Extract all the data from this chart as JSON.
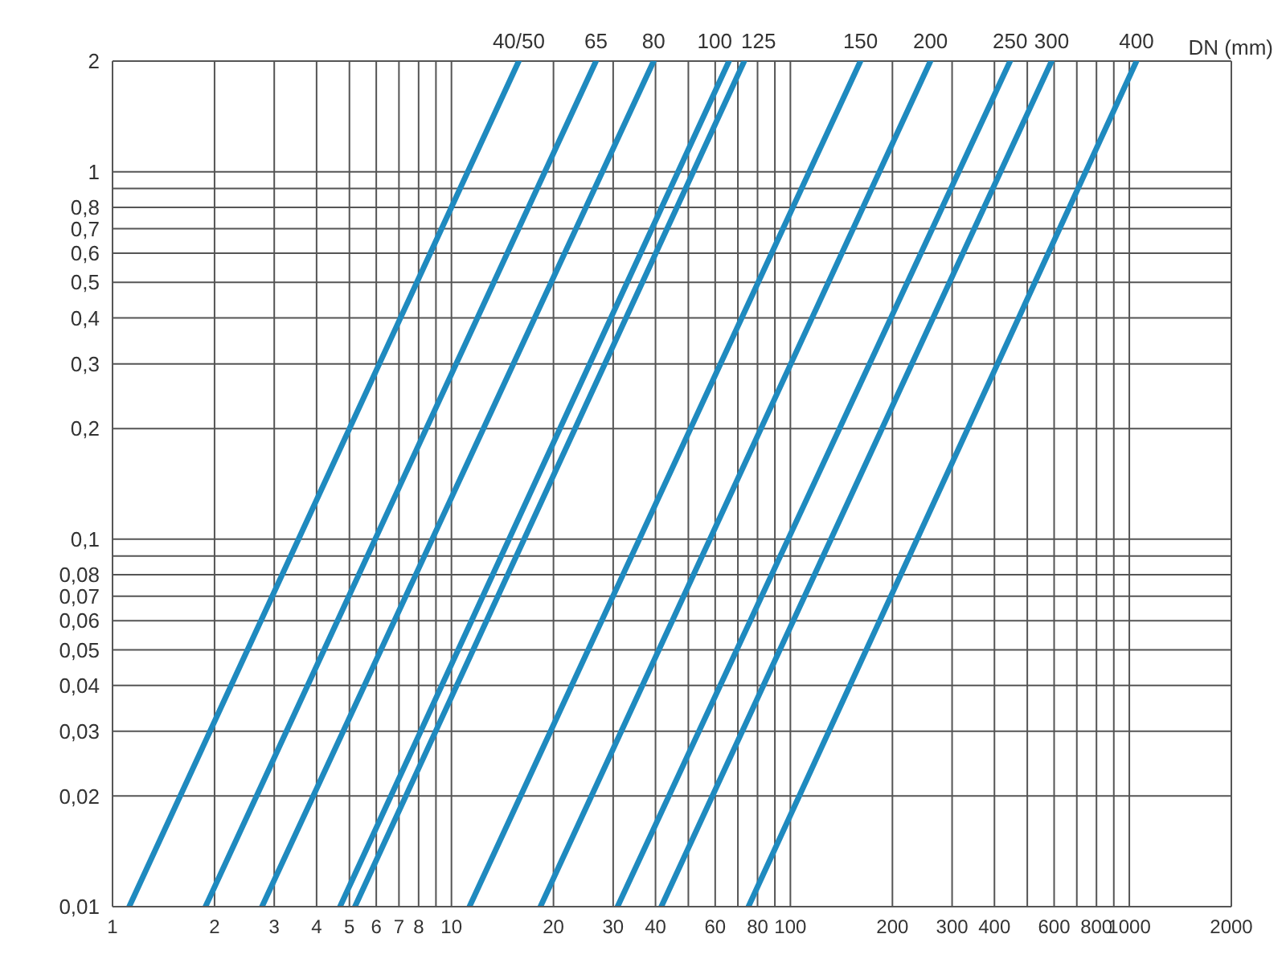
{
  "chart_data": {
    "type": "line",
    "xlim": [
      1,
      2000
    ],
    "ylim": [
      0.01,
      2
    ],
    "log": "xy",
    "grid": true,
    "line_style": "solid",
    "xticks": [
      1,
      2,
      3,
      4,
      5,
      6,
      7,
      8,
      {
        "value": 9,
        "label": null
      },
      10,
      20,
      30,
      40,
      {
        "value": 50,
        "label": null
      },
      60,
      {
        "value": 70,
        "label": null
      },
      80,
      {
        "value": 90,
        "label": null
      },
      100,
      200,
      300,
      400,
      {
        "value": 500,
        "label": null
      },
      600,
      {
        "value": 700,
        "label": null
      },
      800,
      {
        "value": 900,
        "label": null
      },
      1000,
      2000
    ],
    "yticks": [
      {
        "value": 0.01,
        "label": "0,01"
      },
      {
        "value": 0.02,
        "label": "0,02"
      },
      {
        "value": 0.03,
        "label": "0,03"
      },
      {
        "value": 0.04,
        "label": "0,04"
      },
      {
        "value": 0.05,
        "label": "0,05"
      },
      {
        "value": 0.06,
        "label": "0,06"
      },
      {
        "value": 0.07,
        "label": "0,07"
      },
      {
        "value": 0.08,
        "label": "0,08"
      },
      {
        "value": 0.09,
        "label": null
      },
      {
        "value": 0.1,
        "label": "0,1"
      },
      {
        "value": 0.2,
        "label": "0,2"
      },
      {
        "value": 0.3,
        "label": "0,3"
      },
      {
        "value": 0.4,
        "label": "0,4"
      },
      {
        "value": 0.5,
        "label": "0,5"
      },
      {
        "value": 0.6,
        "label": "0,6"
      },
      {
        "value": 0.7,
        "label": "0,7"
      },
      {
        "value": 0.8,
        "label": "0,8"
      },
      {
        "value": 0.9,
        "label": null
      },
      1,
      2
    ],
    "annotations": [
      "DN (mm)"
    ],
    "series": [
      {
        "name": "40/50",
        "color": "#1f8abf",
        "x": [
          1.12,
          15.8
        ],
        "values": [
          0.01,
          2
        ]
      },
      {
        "name": "65",
        "color": "#1f8abf",
        "x": [
          1.88,
          26.7
        ],
        "values": [
          0.01,
          2
        ]
      },
      {
        "name": "80",
        "color": "#1f8abf",
        "x": [
          2.76,
          39.5
        ],
        "values": [
          0.01,
          2
        ]
      },
      {
        "name": "100",
        "color": "#1f8abf",
        "x": [
          4.69,
          65.9
        ],
        "values": [
          0.01,
          2
        ]
      },
      {
        "name": "125",
        "color": "#1f8abf",
        "x": [
          5.19,
          73.1
        ],
        "values": [
          0.01,
          2
        ]
      },
      {
        "name": "150",
        "color": "#1f8abf",
        "x": [
          11.3,
          161
        ],
        "values": [
          0.01,
          2
        ]
      },
      {
        "name": "200",
        "color": "#1f8abf",
        "x": [
          18.3,
          259
        ],
        "values": [
          0.01,
          2
        ]
      },
      {
        "name": "250",
        "color": "#1f8abf",
        "x": [
          30.9,
          445
        ],
        "values": [
          0.01,
          2
        ]
      },
      {
        "name": "300",
        "color": "#1f8abf",
        "x": [
          41.6,
          590
        ],
        "values": [
          0.01,
          2
        ]
      },
      {
        "name": "400",
        "color": "#1f8abf",
        "x": [
          75.2,
          1050
        ],
        "values": [
          0.01,
          2
        ]
      }
    ]
  }
}
